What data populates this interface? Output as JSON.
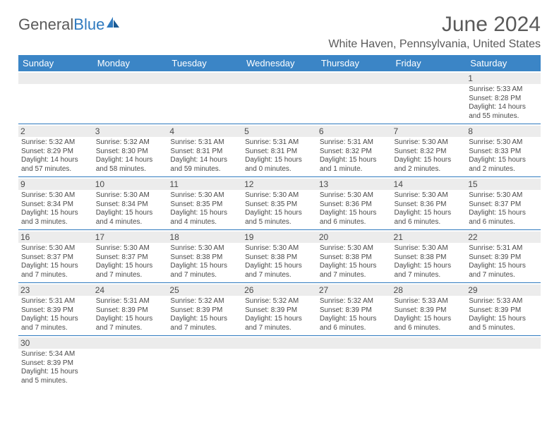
{
  "logo": {
    "text1": "General",
    "text2": "Blue"
  },
  "title": "June 2024",
  "location": "White Haven, Pennsylvania, United States",
  "columns": [
    "Sunday",
    "Monday",
    "Tuesday",
    "Wednesday",
    "Thursday",
    "Friday",
    "Saturday"
  ],
  "colors": {
    "header_bg": "#3b85c6",
    "header_text": "#ffffff",
    "row_border": "#2f7abf",
    "daynum_bg": "#ececec",
    "text": "#4a4a4a",
    "logo_gray": "#5a5a5a",
    "logo_blue": "#2f7abf"
  },
  "fonts": {
    "title_size": 30,
    "location_size": 16,
    "dow_size": 13,
    "daynum_size": 12,
    "detail_size": 10
  },
  "weeks": [
    [
      null,
      null,
      null,
      null,
      null,
      null,
      {
        "n": "1",
        "sr": "Sunrise: 5:33 AM",
        "ss": "Sunset: 8:28 PM",
        "dl": "Daylight: 14 hours and 55 minutes."
      }
    ],
    [
      {
        "n": "2",
        "sr": "Sunrise: 5:32 AM",
        "ss": "Sunset: 8:29 PM",
        "dl": "Daylight: 14 hours and 57 minutes."
      },
      {
        "n": "3",
        "sr": "Sunrise: 5:32 AM",
        "ss": "Sunset: 8:30 PM",
        "dl": "Daylight: 14 hours and 58 minutes."
      },
      {
        "n": "4",
        "sr": "Sunrise: 5:31 AM",
        "ss": "Sunset: 8:31 PM",
        "dl": "Daylight: 14 hours and 59 minutes."
      },
      {
        "n": "5",
        "sr": "Sunrise: 5:31 AM",
        "ss": "Sunset: 8:31 PM",
        "dl": "Daylight: 15 hours and 0 minutes."
      },
      {
        "n": "6",
        "sr": "Sunrise: 5:31 AM",
        "ss": "Sunset: 8:32 PM",
        "dl": "Daylight: 15 hours and 1 minute."
      },
      {
        "n": "7",
        "sr": "Sunrise: 5:30 AM",
        "ss": "Sunset: 8:32 PM",
        "dl": "Daylight: 15 hours and 2 minutes."
      },
      {
        "n": "8",
        "sr": "Sunrise: 5:30 AM",
        "ss": "Sunset: 8:33 PM",
        "dl": "Daylight: 15 hours and 2 minutes."
      }
    ],
    [
      {
        "n": "9",
        "sr": "Sunrise: 5:30 AM",
        "ss": "Sunset: 8:34 PM",
        "dl": "Daylight: 15 hours and 3 minutes."
      },
      {
        "n": "10",
        "sr": "Sunrise: 5:30 AM",
        "ss": "Sunset: 8:34 PM",
        "dl": "Daylight: 15 hours and 4 minutes."
      },
      {
        "n": "11",
        "sr": "Sunrise: 5:30 AM",
        "ss": "Sunset: 8:35 PM",
        "dl": "Daylight: 15 hours and 4 minutes."
      },
      {
        "n": "12",
        "sr": "Sunrise: 5:30 AM",
        "ss": "Sunset: 8:35 PM",
        "dl": "Daylight: 15 hours and 5 minutes."
      },
      {
        "n": "13",
        "sr": "Sunrise: 5:30 AM",
        "ss": "Sunset: 8:36 PM",
        "dl": "Daylight: 15 hours and 6 minutes."
      },
      {
        "n": "14",
        "sr": "Sunrise: 5:30 AM",
        "ss": "Sunset: 8:36 PM",
        "dl": "Daylight: 15 hours and 6 minutes."
      },
      {
        "n": "15",
        "sr": "Sunrise: 5:30 AM",
        "ss": "Sunset: 8:37 PM",
        "dl": "Daylight: 15 hours and 6 minutes."
      }
    ],
    [
      {
        "n": "16",
        "sr": "Sunrise: 5:30 AM",
        "ss": "Sunset: 8:37 PM",
        "dl": "Daylight: 15 hours and 7 minutes."
      },
      {
        "n": "17",
        "sr": "Sunrise: 5:30 AM",
        "ss": "Sunset: 8:37 PM",
        "dl": "Daylight: 15 hours and 7 minutes."
      },
      {
        "n": "18",
        "sr": "Sunrise: 5:30 AM",
        "ss": "Sunset: 8:38 PM",
        "dl": "Daylight: 15 hours and 7 minutes."
      },
      {
        "n": "19",
        "sr": "Sunrise: 5:30 AM",
        "ss": "Sunset: 8:38 PM",
        "dl": "Daylight: 15 hours and 7 minutes."
      },
      {
        "n": "20",
        "sr": "Sunrise: 5:30 AM",
        "ss": "Sunset: 8:38 PM",
        "dl": "Daylight: 15 hours and 7 minutes."
      },
      {
        "n": "21",
        "sr": "Sunrise: 5:30 AM",
        "ss": "Sunset: 8:38 PM",
        "dl": "Daylight: 15 hours and 7 minutes."
      },
      {
        "n": "22",
        "sr": "Sunrise: 5:31 AM",
        "ss": "Sunset: 8:39 PM",
        "dl": "Daylight: 15 hours and 7 minutes."
      }
    ],
    [
      {
        "n": "23",
        "sr": "Sunrise: 5:31 AM",
        "ss": "Sunset: 8:39 PM",
        "dl": "Daylight: 15 hours and 7 minutes."
      },
      {
        "n": "24",
        "sr": "Sunrise: 5:31 AM",
        "ss": "Sunset: 8:39 PM",
        "dl": "Daylight: 15 hours and 7 minutes."
      },
      {
        "n": "25",
        "sr": "Sunrise: 5:32 AM",
        "ss": "Sunset: 8:39 PM",
        "dl": "Daylight: 15 hours and 7 minutes."
      },
      {
        "n": "26",
        "sr": "Sunrise: 5:32 AM",
        "ss": "Sunset: 8:39 PM",
        "dl": "Daylight: 15 hours and 7 minutes."
      },
      {
        "n": "27",
        "sr": "Sunrise: 5:32 AM",
        "ss": "Sunset: 8:39 PM",
        "dl": "Daylight: 15 hours and 6 minutes."
      },
      {
        "n": "28",
        "sr": "Sunrise: 5:33 AM",
        "ss": "Sunset: 8:39 PM",
        "dl": "Daylight: 15 hours and 6 minutes."
      },
      {
        "n": "29",
        "sr": "Sunrise: 5:33 AM",
        "ss": "Sunset: 8:39 PM",
        "dl": "Daylight: 15 hours and 5 minutes."
      }
    ],
    [
      {
        "n": "30",
        "sr": "Sunrise: 5:34 AM",
        "ss": "Sunset: 8:39 PM",
        "dl": "Daylight: 15 hours and 5 minutes."
      },
      null,
      null,
      null,
      null,
      null,
      null
    ]
  ]
}
